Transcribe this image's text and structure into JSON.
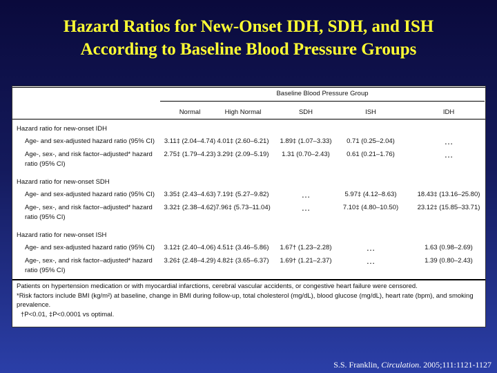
{
  "title": {
    "line1": "Hazard Ratios for New-Onset IDH, SDH, and ISH",
    "line2": "According to Baseline Blood Pressure Groups"
  },
  "table": {
    "group_header": "Baseline Blood Pressure Group",
    "columns": [
      "Normal",
      "High Normal",
      "SDH",
      "ISH",
      "IDH"
    ],
    "sections": [
      {
        "heading": "Hazard ratio for new-onset IDH",
        "rows": [
          {
            "label": [
              "Age- and sex-adjusted hazard ratio (95% CI)"
            ],
            "values": [
              "3.11‡ (2.04–4.74)",
              "4.01‡ (2.60–6.21)",
              "1.89‡ (1.07–3.33)",
              "0.71 (0.25–2.04)",
              "…"
            ]
          },
          {
            "label": [
              "Age-, sex-, and risk factor–adjusted* hazard",
              "ratio (95% CI)"
            ],
            "values": [
              "2.75‡ (1.79–4.23)",
              "3.29‡ (2.09–5.19)",
              "1.31 (0.70–2.43)",
              "0.61 (0.21–1.76)",
              "…"
            ]
          }
        ]
      },
      {
        "heading": "Hazard ratio for new-onset SDH",
        "rows": [
          {
            "label": [
              "Age- and sex-adjusted hazard ratio (95% CI)"
            ],
            "values": [
              "3.35‡ (2.43–4.63)",
              "7.19‡ (5.27–9.82)",
              "…",
              "5.97‡ (4.12–8.63)",
              "18.43‡ (13.16–25.80)"
            ]
          },
          {
            "label": [
              "Age-, sex-, and risk factor–adjusted* hazard",
              "ratio (95% CI)"
            ],
            "values": [
              "3.32‡ (2.38–4.62)",
              "7.96‡ (5.73–11.04)",
              "…",
              "7.10‡ (4.80–10.50)",
              "23.12‡ (15.85–33.71)"
            ]
          }
        ]
      },
      {
        "heading": "Hazard ratio for new-onset ISH",
        "rows": [
          {
            "label": [
              "Age- and sex-adjusted hazard ratio (95% CI)"
            ],
            "values": [
              "3.12‡ (2.40–4.06)",
              "4.51‡ (3.46–5.86)",
              "1.67† (1.23–2.28)",
              "…",
              "1.63 (0.98–2.69)"
            ]
          },
          {
            "label": [
              "Age-, sex-, and risk factor–adjusted* hazard",
              "ratio (95% CI)"
            ],
            "values": [
              "3.26‡ (2.48–4.29)",
              "4.82‡ (3.65–6.37)",
              "1.69† (1.21–2.37)",
              "…",
              "1.39 (0.80–2.43)"
            ]
          }
        ]
      }
    ],
    "footnotes": {
      "censored": "Patients on hypertension medication or with myocardial infarctions, cerebral vascular accidents, or congestive heart failure were censored.",
      "risk_factors": "*Risk factors include BMI (kg/m²) at baseline, change in BMI during follow-up, total cholesterol (mg/dL), blood glucose (mg/dL), heart rate (bpm), and smoking prevalence.",
      "significance": "†P<0.01, ‡P<0.0001 vs optimal."
    }
  },
  "citation": {
    "author": "S.S. Franklin, ",
    "journal": "Circulation",
    "ref": ". 2005;111:1121-1127"
  }
}
